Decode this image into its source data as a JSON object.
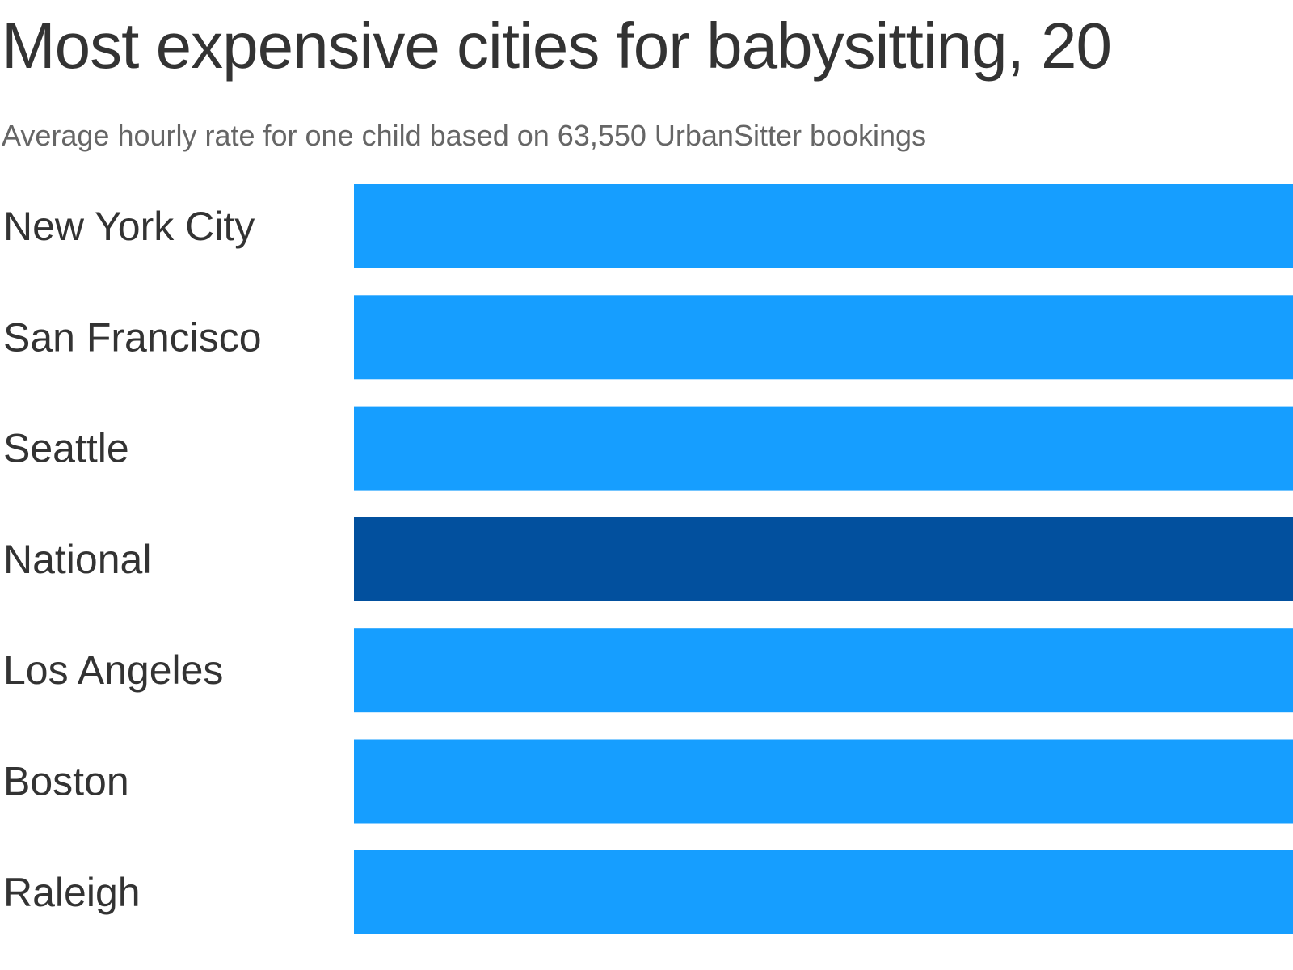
{
  "title": "Most expensive cities for babysitting, 20",
  "subtitle": "Average hourly rate for one child based on 63,550 UrbanSitter bookings",
  "colors": {
    "city_bar": "#169EFF",
    "national_bar": "#02509E",
    "text": "#333333",
    "subtitle": "#666666"
  },
  "chart_data": {
    "type": "bar",
    "orientation": "horizontal",
    "title": "Most expensive cities for babysitting, 20",
    "subtitle": "Average hourly rate for one child based on 63,550 UrbanSitter bookings",
    "categories": [
      "New York City",
      "San Francisco",
      "Seattle",
      "National",
      "Los Angeles",
      "Boston",
      "Raleigh"
    ],
    "highlight": [
      "National"
    ],
    "grid": false,
    "legend": "none"
  }
}
